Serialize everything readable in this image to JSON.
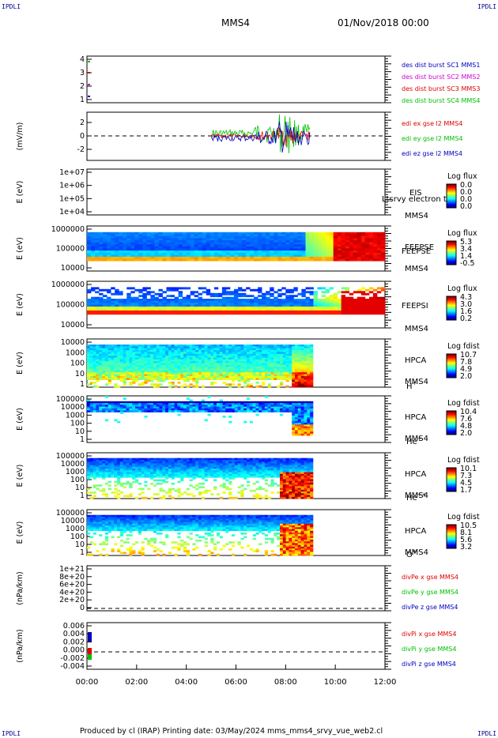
{
  "corners": {
    "tl": "IPDLI",
    "tr": "IPDLI",
    "bl": "IPDLI",
    "br": "IPDLI"
  },
  "header": {
    "spacecraft": "MMS4",
    "datetime": "01/Nov/2018 00:00"
  },
  "footer": {
    "text": "Produced by cl (IRAP)   Printing date: 03/May/2024   mms_mms4_srvy_vue_web2.cl"
  },
  "colors": {
    "red": "#e00000",
    "green": "#00c000",
    "blue": "#0000c0",
    "magenta": "#d000d0",
    "teal": "#00a080"
  },
  "chart_data": [
    {
      "type": "line",
      "panel": "burst-flags",
      "ylim": [
        0.5,
        4.5
      ],
      "yticks": [
        "1",
        "2",
        "3",
        "4"
      ],
      "legend": [
        "des dist burst SC1 MMS1",
        "des dist burst SC2 MMS2",
        "des dist burst SC3 MMS3",
        "des dist burst SC4 MMS4"
      ]
    },
    {
      "type": "line",
      "panel": "electric-field",
      "ylabel": "(mV/m)",
      "ylim": [
        -3,
        3
      ],
      "yticks": [
        "-2",
        "0",
        "2"
      ],
      "data_range_hours": [
        5.0,
        9.0
      ],
      "legend": [
        "edi ex gse l2 MMS4",
        "edi ey gse l2 MMS4",
        "edi ez gse l2 MMS4"
      ]
    },
    {
      "type": "heatmap",
      "panel": "eis",
      "ylabel": "E (eV)",
      "yticks": [
        "1e+07",
        "1e+06",
        "1e+05",
        "1e+04"
      ],
      "labels": [
        "EIS",
        "MMS4"
      ],
      "overlap_label": "Ltsrvy electron to",
      "cbar_title": "Log flux",
      "cbar_ticks": [
        "0.0",
        "0.0",
        "0.0",
        "0.0"
      ]
    },
    {
      "type": "heatmap",
      "panel": "feepse",
      "ylabel": "E (eV)",
      "yticks": [
        "1000000",
        "100000",
        "10000"
      ],
      "labels": [
        "FEEPSE",
        "MMS4"
      ],
      "cbar_title": "Log flux",
      "cbar_ticks": [
        "5.3",
        "3.4",
        "1.4",
        "-0.5"
      ]
    },
    {
      "type": "heatmap",
      "panel": "feepsi",
      "ylabel": "E (eV)",
      "yticks": [
        "1000000",
        "100000",
        "10000"
      ],
      "labels": [
        "FEEPSI",
        "MMS4"
      ],
      "cbar_title": "Log flux",
      "cbar_ticks": [
        "4.3",
        "3.0",
        "1.6",
        "0.2"
      ]
    },
    {
      "type": "heatmap",
      "panel": "hpca-h",
      "ylabel": "E (eV)",
      "yticks": [
        "10000",
        "1000",
        "100",
        "10",
        "1"
      ],
      "labels": [
        "HPCA",
        "MMS4"
      ],
      "species": "H",
      "charge": "+",
      "cbar_title": "Log fdist",
      "cbar_ticks": [
        "10.7",
        "7.8",
        "4.9",
        "2.0"
      ]
    },
    {
      "type": "heatmap",
      "panel": "hpca-he",
      "ylabel": "E (eV)",
      "yticks": [
        "100000",
        "10000",
        "1000",
        "100",
        "10",
        "1"
      ],
      "labels": [
        "HPCA",
        "MMS4"
      ],
      "species": "He",
      "charge": "+",
      "cbar_title": "Log fdist",
      "cbar_ticks": [
        "10.4",
        "7.6",
        "4.8",
        "2.0"
      ]
    },
    {
      "type": "heatmap",
      "panel": "hpca-hepp",
      "ylabel": "E (eV)",
      "yticks": [
        "100000",
        "10000",
        "1000",
        "100",
        "10",
        "1"
      ],
      "labels": [
        "HPCA",
        "MMS4"
      ],
      "species": "He",
      "charge": "++",
      "cbar_title": "Log fdist",
      "cbar_ticks": [
        "10.1",
        "7.3",
        "4.5",
        "1.7"
      ]
    },
    {
      "type": "heatmap",
      "panel": "hpca-o",
      "ylabel": "E (eV)",
      "yticks": [
        "100000",
        "10000",
        "1000",
        "100",
        "10",
        "1"
      ],
      "labels": [
        "HPCA",
        "MMS4"
      ],
      "species": "O",
      "charge": "+",
      "cbar_title": "Log fdist",
      "cbar_ticks": [
        "10.5",
        "8.1",
        "5.6",
        "3.2"
      ]
    },
    {
      "type": "line",
      "panel": "divpe",
      "ylabel": "(nPa/km)",
      "ylim": [
        0,
        1e+21
      ],
      "yticks": [
        "1e+21",
        "8e+20",
        "6e+20",
        "4e+20",
        "2e+20",
        "0"
      ],
      "legend": [
        "divPe x gse MMS4",
        "divPe y gse MMS4",
        "divPe z gse MMS4"
      ]
    },
    {
      "type": "line",
      "panel": "divpi",
      "ylabel": "(nPa/km)",
      "ylim": [
        -0.0045,
        0.0065
      ],
      "yticks": [
        "0.006",
        "0.004",
        "0.002",
        "0.000",
        "-0.002",
        "-0.004"
      ],
      "legend": [
        "divPi x gse MMS4",
        "divPi y gse MMS4",
        "divPi z gse MMS4"
      ]
    }
  ],
  "xaxis": {
    "ticks": [
      "00:00",
      "02:00",
      "04:00",
      "06:00",
      "08:00",
      "10:00",
      "12:00"
    ],
    "range_hours": [
      0,
      12
    ]
  }
}
